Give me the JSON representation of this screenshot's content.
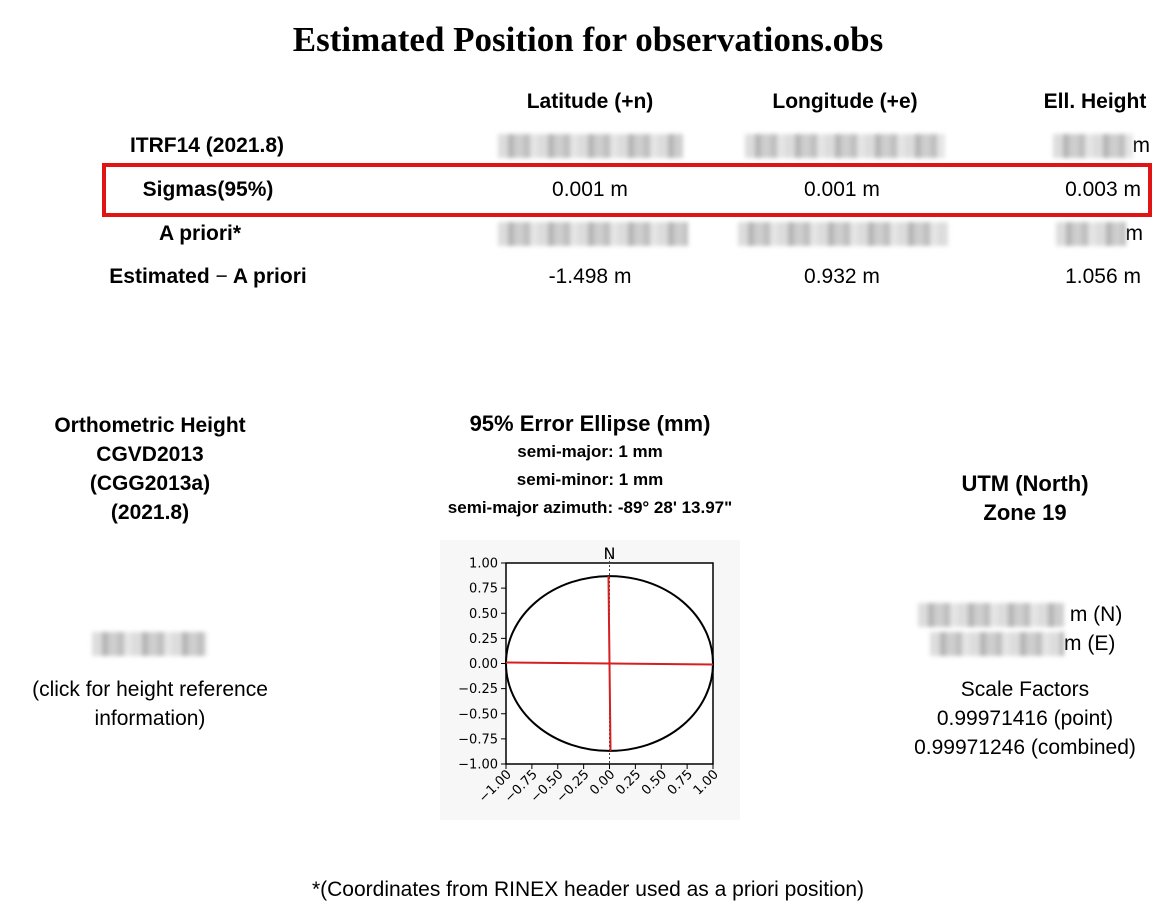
{
  "title": "Estimated Position for observations.obs",
  "columns": [
    "Latitude (+n)",
    "Longitude (+e)",
    "Ell. Height"
  ],
  "rows": [
    {
      "label": "ITRF14 (2021.8)",
      "lat": "",
      "lon": "",
      "height": "m",
      "redacted": true
    },
    {
      "label": "Sigmas(95%)",
      "lat": "0.001 m",
      "lon": "0.001 m",
      "height": "0.003 m",
      "highlighted": true
    },
    {
      "label": "A priori*",
      "lat": "",
      "lon": "",
      "height": "m",
      "redacted": true
    },
    {
      "label_a": "Estimated",
      "label_sep": "−",
      "label_b": "A priori",
      "lat": "-1.498 m",
      "lon": "0.932 m",
      "height": "1.056 m"
    }
  ],
  "ortho": {
    "lines": [
      "Orthometric Height",
      "CGVD2013",
      "(CGG2013a)",
      "(2021.8)"
    ],
    "link_line1": "(click for height reference",
    "link_line2": "information)"
  },
  "ellipse": {
    "heading": "95% Error Ellipse (mm)",
    "semi_major": "semi-major: 1 mm",
    "semi_minor": "semi-minor: 1 mm",
    "azimuth": "semi-major azimuth:  -89° 28' 13.97\""
  },
  "utm": {
    "title_line1": "UTM (North)",
    "title_line2": "Zone 19",
    "northing_unit": "m (N)",
    "easting_unit": "m (E)",
    "scale_title": "Scale Factors",
    "scale_point": "0.99971416 (point)",
    "scale_combined": "0.99971246 (combined)"
  },
  "footer": "*(Coordinates from RINEX header used as a priori position)",
  "colors": {
    "highlight": "#e01414",
    "axis_line": "#d42020"
  },
  "chart_data": {
    "type": "scatter",
    "north_label": "N",
    "xlim": [
      -1.0,
      1.0
    ],
    "ylim": [
      -1.0,
      1.0
    ],
    "xticks": [
      "−1.00",
      "−0.75",
      "−0.50",
      "−0.25",
      "0.00",
      "0.25",
      "0.50",
      "0.75",
      "1.00"
    ],
    "yticks": [
      "1.00",
      "0.75",
      "0.50",
      "0.25",
      "0.00",
      "−0.25",
      "−0.50",
      "−0.75",
      "−1.00"
    ],
    "ellipse_semi_major": 1.0,
    "ellipse_semi_minor": 0.87,
    "semi_major_azimuth_deg": -89.47
  }
}
